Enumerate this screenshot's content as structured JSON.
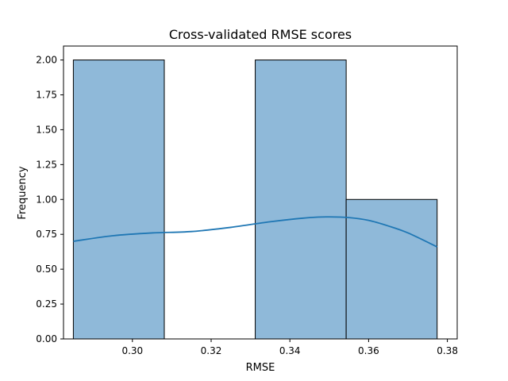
{
  "chart_data": {
    "type": "bar",
    "title": "Cross-validated RMSE scores",
    "xlabel": "RMSE",
    "ylabel": "Frequency",
    "xlim": [
      0.2825,
      0.3825
    ],
    "ylim": [
      0,
      2.1
    ],
    "xticks": [
      0.3,
      0.32,
      0.34,
      0.36,
      0.38
    ],
    "xtick_labels": [
      "0.30",
      "0.32",
      "0.34",
      "0.36",
      "0.38"
    ],
    "yticks": [
      0,
      0.25,
      0.5,
      0.75,
      1.0,
      1.25,
      1.5,
      1.75,
      2.0
    ],
    "ytick_labels": [
      "0.00",
      "0.25",
      "0.50",
      "0.75",
      "1.00",
      "1.25",
      "1.50",
      "1.75",
      "2.00"
    ],
    "bins": [
      {
        "x0": 0.285,
        "x1": 0.3081,
        "count": 2
      },
      {
        "x0": 0.3081,
        "x1": 0.3312,
        "count": 0
      },
      {
        "x0": 0.3312,
        "x1": 0.3543,
        "count": 2
      },
      {
        "x0": 0.3543,
        "x1": 0.3774,
        "count": 1
      }
    ],
    "kde": {
      "x": [
        0.285,
        0.295,
        0.305,
        0.315,
        0.325,
        0.335,
        0.345,
        0.35,
        0.355,
        0.36,
        0.365,
        0.37,
        0.3774
      ],
      "y": [
        0.7,
        0.74,
        0.76,
        0.77,
        0.8,
        0.84,
        0.87,
        0.875,
        0.87,
        0.85,
        0.81,
        0.76,
        0.66
      ]
    },
    "grid": false,
    "legend": "none",
    "colors": {
      "bar_fill": "#8fb9d9",
      "bar_edge": "#000000",
      "kde_line": "#1f77b4"
    }
  }
}
